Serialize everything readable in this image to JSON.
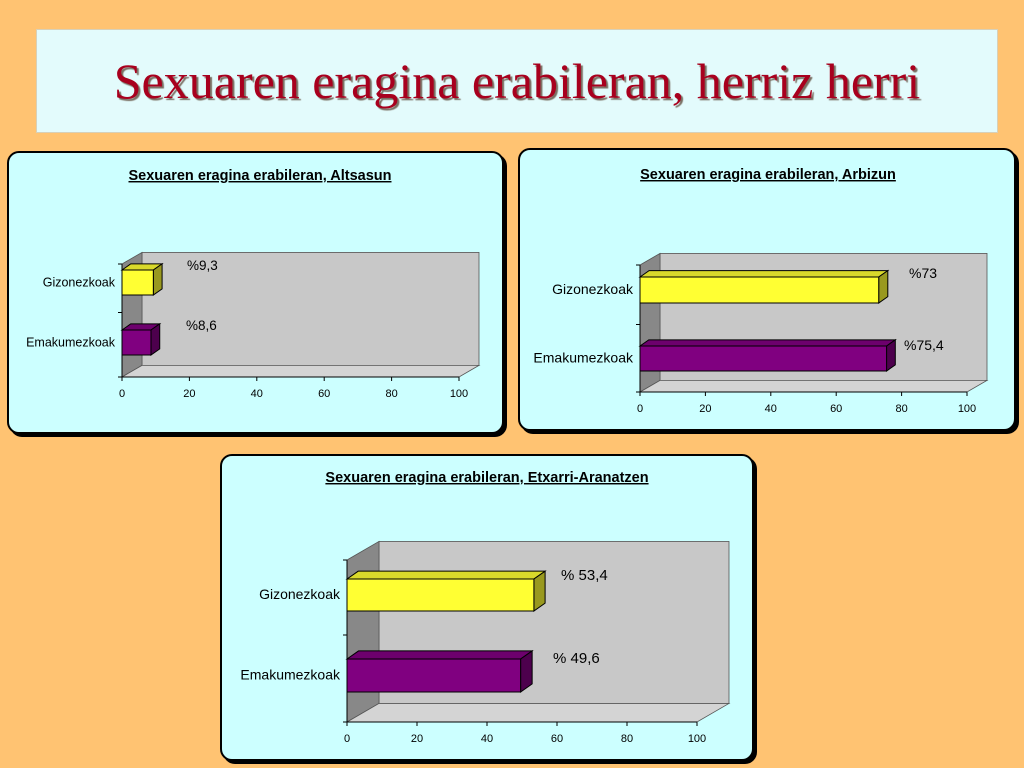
{
  "slide_title": "Sexuaren eragina erabileran, herriz herri",
  "colors": {
    "background": "#FFC372",
    "title_box": "#E3FBFC",
    "title_text": "#A8001E",
    "chart_area": "#CCFFFF",
    "plot_back": "#C8C8C8",
    "men_bar": "#FFFF33",
    "women_bar": "#800080"
  },
  "chart_data": [
    {
      "type": "bar",
      "orientation": "horizontal",
      "title": "Sexuaren eragina erabileran, Altsasun",
      "categories": [
        "Gizonezkoak",
        "Emakumezkoak"
      ],
      "values": [
        9.3,
        8.6
      ],
      "data_labels": [
        "%9,3",
        "%8,6"
      ],
      "xlim": [
        0,
        100
      ],
      "xticks": [
        0,
        20,
        40,
        60,
        80,
        100
      ],
      "grid": false,
      "legend": "none"
    },
    {
      "type": "bar",
      "orientation": "horizontal",
      "title": "Sexuaren eragina erabileran, Arbizun",
      "categories": [
        "Gizonezkoak",
        "Emakumezkoak"
      ],
      "values": [
        73,
        75.4
      ],
      "data_labels": [
        "%73",
        "%75,4"
      ],
      "xlim": [
        0,
        100
      ],
      "xticks": [
        0,
        20,
        40,
        60,
        80,
        100
      ],
      "grid": false,
      "legend": "none"
    },
    {
      "type": "bar",
      "orientation": "horizontal",
      "title": "Sexuaren eragina erabileran, Etxarri-Aranatzen",
      "categories": [
        "Gizonezkoak",
        "Emakumezkoak"
      ],
      "values": [
        53.4,
        49.6
      ],
      "data_labels": [
        "% 53,4",
        "% 49,6"
      ],
      "xlim": [
        0,
        100
      ],
      "xticks": [
        0,
        20,
        40,
        60,
        80,
        100
      ],
      "grid": false,
      "legend": "none"
    }
  ]
}
